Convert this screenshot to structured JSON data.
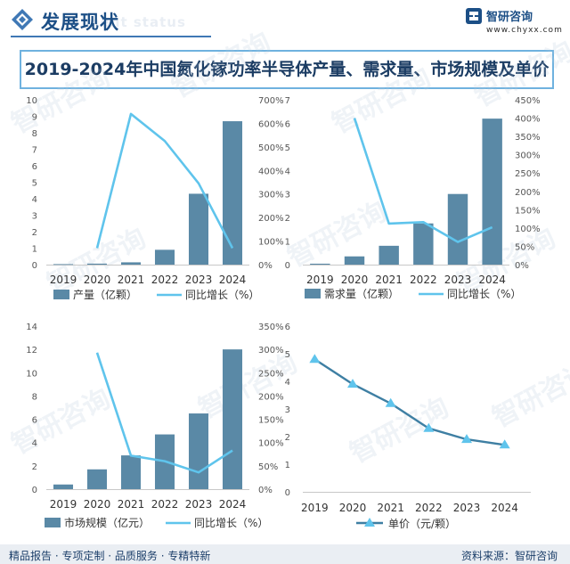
{
  "header": {
    "title": "发展现状",
    "ghost_text": "ment status",
    "brand_name": "智研咨询",
    "brand_url": "www.chyxx.com"
  },
  "main_title": "2019-2024年中国氮化镓功率半导体产量、需求量、市场规模及单价",
  "footer": {
    "left": "精品报告 · 专项定制 · 品质服务 · 专精特新",
    "right": "资料来源：智研咨询"
  },
  "watermark": "智研咨询",
  "colors": {
    "bar": "#5a89a6",
    "line": "#5fc4ec",
    "price_line": "#3e7fa3",
    "accent": "#1c4f86"
  },
  "chart_data": [
    {
      "type": "bar",
      "categories": [
        "2019",
        "2020",
        "2021",
        "2022",
        "2023",
        "2024"
      ],
      "series": [
        {
          "name": "产量（亿颗）",
          "type": "bar",
          "axis": "left",
          "values": [
            0.03,
            0.06,
            0.14,
            0.9,
            4.3,
            8.7
          ]
        },
        {
          "name": "同比增长（%）",
          "type": "line",
          "axis": "right",
          "values": [
            null,
            70,
            640,
            525,
            345,
            70
          ]
        }
      ],
      "y_left": {
        "min": 0,
        "max": 10,
        "ticks": [
          "0",
          "1",
          "2",
          "3",
          "4",
          "5",
          "6",
          "7",
          "8",
          "9",
          "10"
        ]
      },
      "y_right": {
        "min": 0,
        "max": 700,
        "ticks": [
          "0%",
          "100%",
          "200%",
          "300%",
          "400%",
          "500%",
          "600%",
          "700%"
        ]
      }
    },
    {
      "type": "bar",
      "categories": [
        "2019",
        "2020",
        "2021",
        "2022",
        "2023",
        "2024"
      ],
      "series": [
        {
          "name": "需求量（亿颗）",
          "type": "bar",
          "axis": "left",
          "values": [
            0.04,
            0.35,
            0.8,
            1.75,
            3.0,
            6.2
          ]
        },
        {
          "name": "同比增长（%）",
          "type": "line",
          "axis": "right",
          "values": [
            null,
            400,
            112,
            116,
            62,
            102
          ]
        }
      ],
      "y_left": {
        "min": 0,
        "max": 7,
        "ticks": [
          "0",
          "1",
          "2",
          "3",
          "4",
          "5",
          "6",
          "7"
        ]
      },
      "y_right": {
        "min": 0,
        "max": 450,
        "ticks": [
          "0%",
          "50%",
          "100%",
          "150%",
          "200%",
          "250%",
          "300%",
          "350%",
          "400%",
          "450%"
        ]
      }
    },
    {
      "type": "bar",
      "categories": [
        "2019",
        "2020",
        "2021",
        "2022",
        "2023",
        "2024"
      ],
      "series": [
        {
          "name": "市场规模（亿元）",
          "type": "bar",
          "axis": "left",
          "values": [
            0.4,
            1.7,
            2.9,
            4.7,
            6.5,
            12.0
          ]
        },
        {
          "name": "同比增长（%）",
          "type": "line",
          "axis": "right",
          "values": [
            null,
            293,
            72,
            60,
            36,
            83
          ]
        }
      ],
      "y_left": {
        "min": 0,
        "max": 14,
        "ticks": [
          "0",
          "2",
          "4",
          "6",
          "8",
          "10",
          "12",
          "14"
        ]
      },
      "y_right": {
        "min": 0,
        "max": 350,
        "ticks": [
          "0%",
          "50%",
          "100%",
          "150%",
          "200%",
          "250%",
          "300%",
          "350%"
        ]
      }
    },
    {
      "type": "line",
      "categories": [
        "2019",
        "2020",
        "2021",
        "2022",
        "2023",
        "2024"
      ],
      "series": [
        {
          "name": "单价（元/颗）",
          "values": [
            4.8,
            3.9,
            3.2,
            2.3,
            1.9,
            1.7
          ]
        }
      ],
      "y": {
        "min": 0,
        "max": 6,
        "ticks": [
          "0",
          "1",
          "2",
          "3",
          "4",
          "5",
          "6"
        ]
      }
    }
  ]
}
